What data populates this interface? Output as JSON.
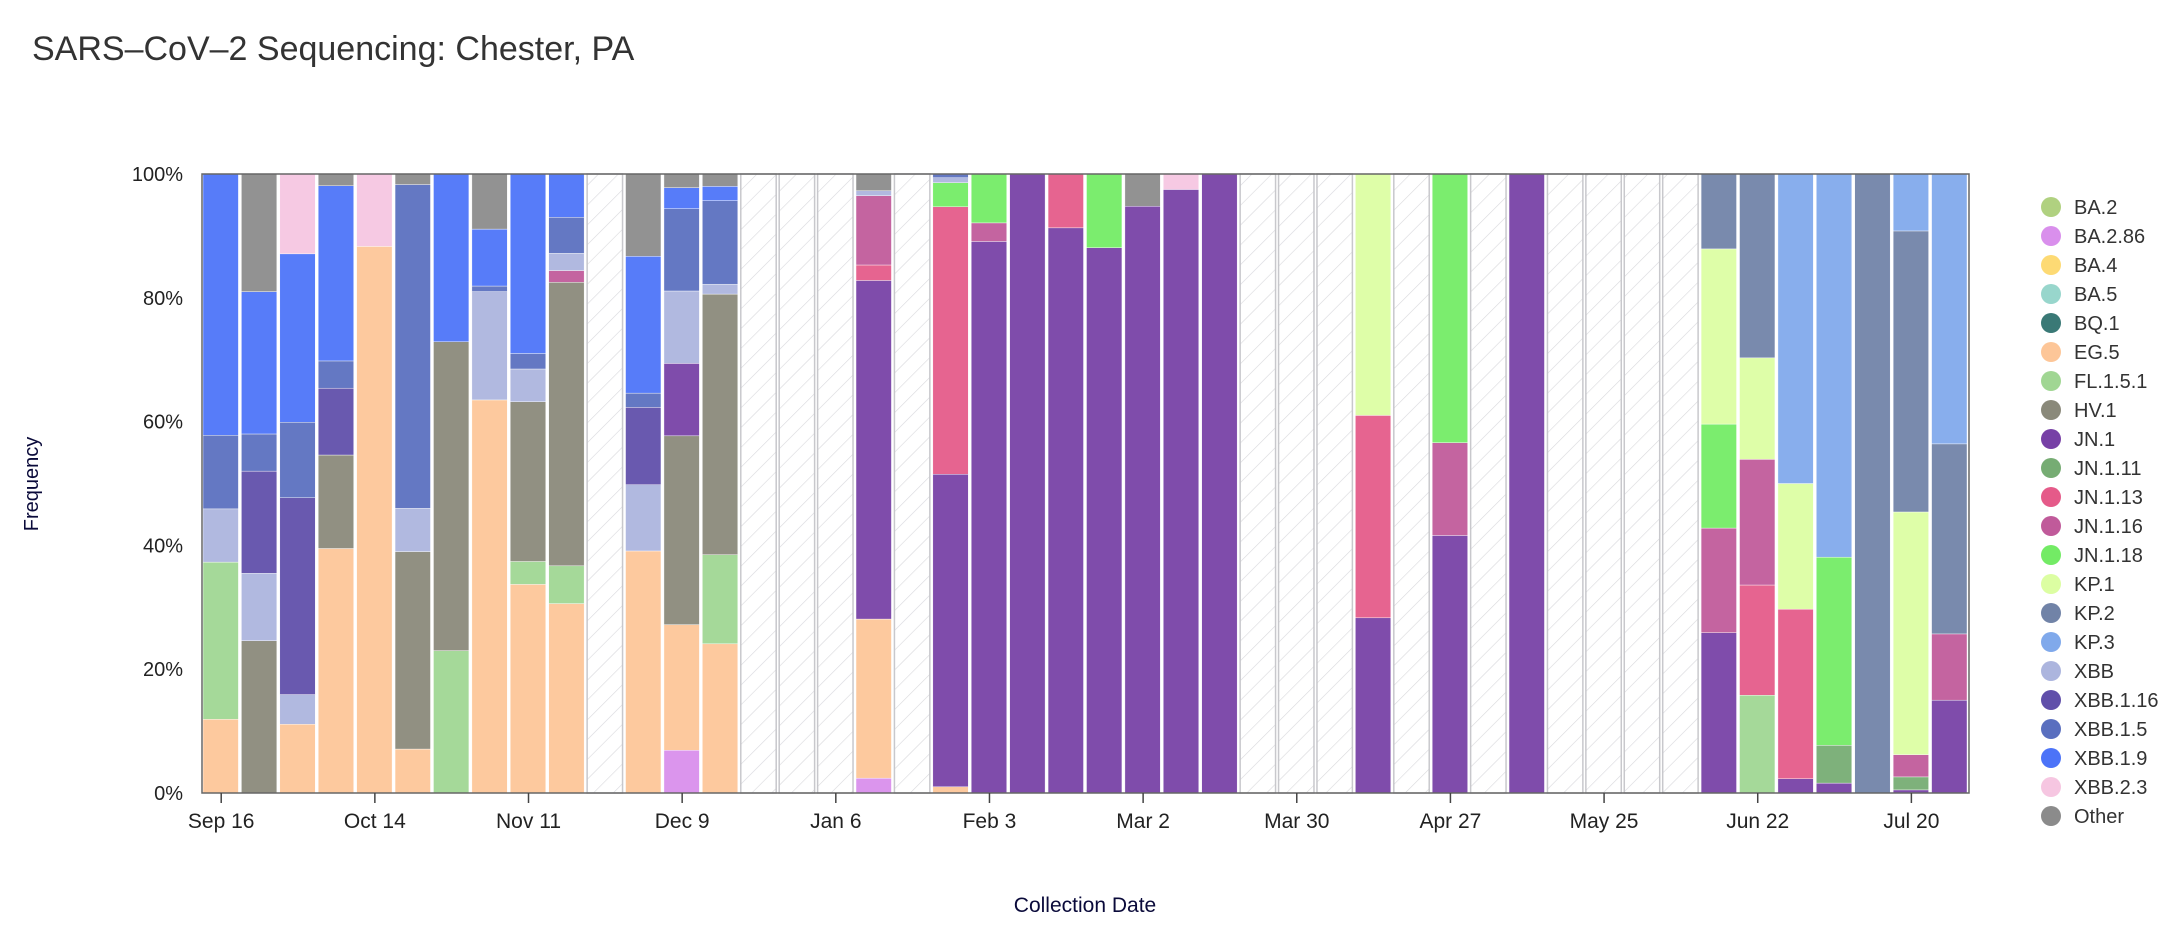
{
  "chart_data": {
    "type": "bar",
    "stacked": true,
    "title": "SARS–CoV–2 Sequencing: Chester, PA",
    "xlabel": "Collection Date",
    "ylabel": "Frequency",
    "ylim": [
      0,
      100
    ],
    "y_ticks": [
      "0%",
      "20%",
      "40%",
      "60%",
      "80%",
      "100%"
    ],
    "x_ticks": [
      {
        "date": "2023-09-16",
        "label": "Sep 16"
      },
      {
        "date": "2023-10-14",
        "label": "Oct 14"
      },
      {
        "date": "2023-11-11",
        "label": "Nov 11"
      },
      {
        "date": "2023-12-09",
        "label": "Dec 9"
      },
      {
        "date": "2024-01-06",
        "label": "Jan 6"
      },
      {
        "date": "2024-02-03",
        "label": "Feb 3"
      },
      {
        "date": "2024-03-02",
        "label": "Mar 2"
      },
      {
        "date": "2024-03-30",
        "label": "Mar 30"
      },
      {
        "date": "2024-04-27",
        "label": "Apr 27"
      },
      {
        "date": "2024-05-25",
        "label": "May 25"
      },
      {
        "date": "2024-06-22",
        "label": "Jun 22"
      },
      {
        "date": "2024-07-20",
        "label": "Jul 20"
      }
    ],
    "legend_position": "right",
    "legend": [
      {
        "name": "BA.2",
        "color": "#a2c96a"
      },
      {
        "name": "BA.2.86",
        "color": "#d27be9"
      },
      {
        "name": "BA.4",
        "color": "#fdd35c"
      },
      {
        "name": "BA.5",
        "color": "#86cfc3"
      },
      {
        "name": "BQ.1",
        "color": "#17615e"
      },
      {
        "name": "EG.5",
        "color": "#fdbc86"
      },
      {
        "name": "FL.1.5.1",
        "color": "#8fcf80"
      },
      {
        "name": "HV.1",
        "color": "#767463"
      },
      {
        "name": "JN.1",
        "color": "#5f1f96"
      },
      {
        "name": "JN.1.11",
        "color": "#5e9e5a"
      },
      {
        "name": "JN.1.13",
        "color": "#e03d74"
      },
      {
        "name": "JN.1.16",
        "color": "#b53d88"
      },
      {
        "name": "JN.1.18",
        "color": "#5ae84a"
      },
      {
        "name": "KP.1",
        "color": "#d6fe92"
      },
      {
        "name": "KP.2",
        "color": "#586d98"
      },
      {
        "name": "KP.3",
        "color": "#6a9ae8"
      },
      {
        "name": "XBB",
        "color": "#9ea8d8"
      },
      {
        "name": "XBB.1.16",
        "color": "#44309b"
      },
      {
        "name": "XBB.1.5",
        "color": "#3d56b4"
      },
      {
        "name": "XBB.1.9",
        "color": "#2d5bf7"
      },
      {
        "name": "XBB.2.3",
        "color": "#f4bcdc"
      },
      {
        "name": "Other",
        "color": "#777777"
      }
    ],
    "no_data_pattern": "hatched",
    "categories": [
      "2023-09-16",
      "2023-09-23",
      "2023-09-30",
      "2023-10-07",
      "2023-10-14",
      "2023-10-21",
      "2023-10-28",
      "2023-11-04",
      "2023-11-11",
      "2023-11-18",
      "2023-11-25",
      "2023-12-02",
      "2023-12-09",
      "2023-12-16",
      "2023-12-23",
      "2023-12-30",
      "2024-01-06",
      "2024-01-13",
      "2024-01-20",
      "2024-01-27",
      "2024-02-03",
      "2024-02-10",
      "2024-02-17",
      "2024-02-24",
      "2024-03-02",
      "2024-03-09",
      "2024-03-16",
      "2024-03-23",
      "2024-03-30",
      "2024-04-06",
      "2024-04-13",
      "2024-04-20",
      "2024-04-27",
      "2024-05-04",
      "2024-05-11",
      "2024-05-18",
      "2024-05-25",
      "2024-06-01",
      "2024-06-08",
      "2024-06-15",
      "2024-06-22",
      "2024-06-29",
      "2024-07-06",
      "2024-07-13",
      "2024-07-20",
      "2024-07-27"
    ],
    "values": [
      {
        "EG.5": 11.9,
        "FL.1.5.1": 25.4,
        "XBB": 8.6,
        "XBB.1.5": 11.9,
        "XBB.1.9": 42.2
      },
      {
        "HV.1": 24.6,
        "XBB": 10.9,
        "XBB.1.16": 16.5,
        "XBB.1.5": 6.0,
        "XBB.1.9": 23.0,
        "Other": 19.0
      },
      {
        "EG.5": 11.1,
        "XBB": 4.8,
        "XBB.1.16": 31.8,
        "XBB.1.5": 12.2,
        "XBB.1.9": 27.2,
        "XBB.2.3": 12.9
      },
      {
        "EG.5": 39.5,
        "HV.1": 15.1,
        "XBB.1.16": 10.8,
        "XBB.1.5": 4.4,
        "XBB.1.9": 28.3,
        "Other": 1.9
      },
      {
        "EG.5": 88.3,
        "XBB.2.3": 11.7
      },
      {
        "EG.5": 7.1,
        "HV.1": 31.9,
        "XBB": 7.0,
        "XBB.1.5": 52.3,
        "Other": 1.7
      },
      {
        "FL.1.5.1": 23.0,
        "HV.1": 49.9,
        "XBB.1.9": 27.1
      },
      {
        "EG.5": 63.5,
        "XBB": 17.5,
        "XBB.1.5": 0.9,
        "XBB.1.9": 9.2,
        "Other": 8.9
      },
      {
        "EG.5": 33.7,
        "FL.1.5.1": 3.7,
        "HV.1": 25.8,
        "XBB": 5.3,
        "XBB.1.5": 2.5,
        "XBB.1.9": 29.0
      },
      {
        "EG.5": 30.6,
        "FL.1.5.1": 6.1,
        "HV.1": 45.8,
        "JN.1.16": 1.9,
        "XBB": 2.8,
        "XBB.1.5": 5.8,
        "XBB.1.9": 7.0
      },
      null,
      {
        "EG.5": 39.1,
        "XBB": 10.7,
        "XBB.1.16": 12.5,
        "XBB.1.5": 2.3,
        "XBB.1.9": 22.1,
        "Other": 13.3
      },
      {
        "BA.2.86": 6.9,
        "EG.5": 20.3,
        "HV.1": 30.5,
        "JN.1": 11.7,
        "XBB": 11.7,
        "XBB.1.5": 13.3,
        "XBB.1.9": 3.4,
        "Other": 2.2
      },
      {
        "EG.5": 24.1,
        "FL.1.5.1": 14.4,
        "HV.1": 42.1,
        "XBB": 1.6,
        "XBB.1.5": 13.5,
        "XBB.1.9": 2.3,
        "Other": 2.0
      },
      null,
      null,
      null,
      {
        "BA.2.86": 2.4,
        "EG.5": 25.7,
        "JN.1": 54.7,
        "JN.1.13": 2.5,
        "JN.1.16": 11.2,
        "XBB": 0.8,
        "Other": 2.7
      },
      null,
      {
        "EG.5": 1.0,
        "JN.1": 50.5,
        "JN.1.13": 43.2,
        "JN.1.18": 3.9,
        "XBB": 0.8,
        "XBB.1.5": 0.6
      },
      {
        "JN.1": 89.1,
        "JN.1.16": 3.0,
        "JN.1.18": 7.9
      },
      {
        "JN.1": 100
      },
      {
        "JN.1": 91.3,
        "JN.1.13": 8.7
      },
      {
        "JN.1": 88.1,
        "JN.1.18": 11.9
      },
      {
        "JN.1": 94.8,
        "Other": 5.2
      },
      {
        "JN.1": 97.5,
        "XBB.2.3": 2.5
      },
      {
        "JN.1": 100
      },
      null,
      null,
      null,
      {
        "JN.1": 28.3,
        "JN.1.13": 32.7,
        "KP.1": 39.0
      },
      null,
      {
        "JN.1": 41.6,
        "JN.1.16": 15.0,
        "JN.1.18": 43.4
      },
      null,
      {
        "JN.1": 100
      },
      null,
      null,
      null,
      null,
      {
        "JN.1": 25.9,
        "JN.1.16": 16.9,
        "JN.1.18": 16.8,
        "KP.1": 28.3,
        "KP.2": 12.1
      },
      {
        "FL.1.5.1": 15.8,
        "JN.1.13": 17.8,
        "JN.1.16": 20.3,
        "KP.1": 16.4,
        "KP.2": 29.7
      },
      {
        "JN.1": 2.3,
        "JN.1.13": 27.4,
        "KP.1": 20.3,
        "KP.3": 50.0
      },
      {
        "JN.1": 1.6,
        "JN.1.11": 6.1,
        "JN.1.18": 30.4,
        "KP.3": 61.9
      },
      {
        "KP.2": 100
      },
      {
        "JN.1": 0.5,
        "JN.1.11": 2.1,
        "JN.1.16": 3.6,
        "KP.1": 39.2,
        "KP.2": 45.4,
        "KP.3": 9.2
      },
      {
        "JN.1": 15.0,
        "JN.1.16": 10.7,
        "KP.2": 30.7,
        "KP.3": 43.6
      }
    ]
  }
}
